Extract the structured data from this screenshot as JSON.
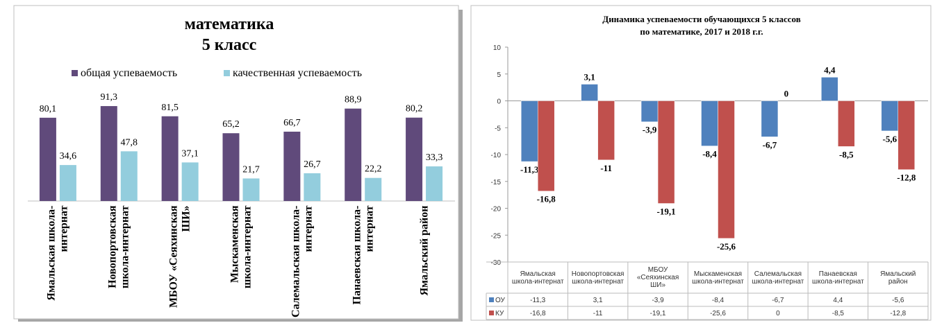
{
  "chart_data": [
    {
      "type": "bar",
      "title": "математика",
      "subtitle": "5 класс",
      "categories": [
        "Ямальская школа-интернат",
        "Новопортовская школа-интернат",
        "МБОУ «Сеяхинская ШИ»",
        "Мыскаменская школа-интернат",
        "Салемальская школа-интернат",
        "Панаевская школа-интернат",
        "Ямальский район"
      ],
      "series": [
        {
          "name": "общая успеваемость",
          "color": "#604a7b",
          "values": [
            80.1,
            91.3,
            81.5,
            65.2,
            66.7,
            88.9,
            80.2
          ],
          "value_labels": [
            "80,1",
            "91,3",
            "81,5",
            "65,2",
            "66,7",
            "88,9",
            "80,2"
          ]
        },
        {
          "name": "качественная успеваемость",
          "color": "#93cddd",
          "values": [
            34.6,
            47.8,
            37.1,
            21.7,
            26.7,
            22.2,
            33.3
          ],
          "value_labels": [
            "34,6",
            "47,8",
            "37,1",
            "21,7",
            "26,7",
            "22,2",
            "33,3"
          ]
        }
      ],
      "ylim": [
        0,
        100
      ]
    },
    {
      "type": "bar",
      "title": "Динамика успеваемости обучающихся  5 классов",
      "subtitle": "по математике, 2017 и 2018 г.г.",
      "categories": [
        "Ямальская школа-интернат",
        "Новопортовская школа-интернат",
        "МБОУ «Сеяхинская ШИ»",
        "Мыскаменская школа-интернат",
        "Салемальская школа-интернат",
        "Панаевская школа-интернат",
        "Ямальский район"
      ],
      "series": [
        {
          "name": "ОУ",
          "color": "#4f81bd",
          "values": [
            -11.3,
            3.1,
            -3.9,
            -8.4,
            -6.7,
            4.4,
            -5.6
          ],
          "value_labels": [
            "-11,3",
            "3,1",
            "-3,9",
            "-8,4",
            "-6,7",
            "4,4",
            "-5,6"
          ]
        },
        {
          "name": "КУ",
          "color": "#c0504d",
          "values": [
            -16.8,
            -11,
            -19.1,
            -25.6,
            0,
            -8.5,
            -12.8
          ],
          "value_labels": [
            "-16,8",
            "-11",
            "-19,1",
            "-25,6",
            "0",
            "-8,5",
            "-12,8"
          ]
        }
      ],
      "ylim": [
        -30,
        10
      ],
      "yticks": [
        -30,
        -25,
        -20,
        -15,
        -10,
        -5,
        0,
        5,
        10
      ]
    }
  ]
}
